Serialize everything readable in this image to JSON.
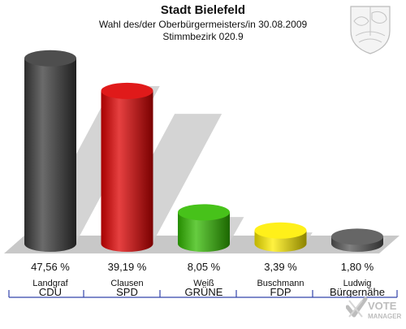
{
  "header": {
    "title": "Stadt Bielefeld",
    "subtitle": "Wahl des/der Oberbürgermeisters/in 30.08.2009",
    "district": "Stimmbezirk 020.9"
  },
  "logo": {
    "line1": "VOTE",
    "line2": "MANAGER"
  },
  "crest_icon": "coat-of-arms-icon",
  "colors": {
    "floor": "#c8c8c8",
    "shadow": "#cfcfcf",
    "separator": "#3344aa"
  },
  "chart_data": {
    "type": "bar",
    "title": "Stadt Bielefeld",
    "categories": [
      "CDU",
      "SPD",
      "GRÜNE",
      "FDP",
      "Bürgernähe"
    ],
    "candidates": [
      "Landgraf",
      "Clausen",
      "Weiß",
      "Buschmann",
      "Ludwig"
    ],
    "values": [
      47.56,
      39.19,
      8.05,
      3.39,
      1.8
    ],
    "value_labels": [
      "47,56 %",
      "39,19 %",
      "8,05 %",
      "3,39 %",
      "1,80 %"
    ],
    "colors": [
      "#3a3a3a",
      "#dd0000",
      "#33bb00",
      "#ffee00",
      "#555555"
    ],
    "xlabel": "",
    "ylabel": "",
    "ylim": [
      0,
      50
    ],
    "grid": false,
    "legend": "none"
  }
}
